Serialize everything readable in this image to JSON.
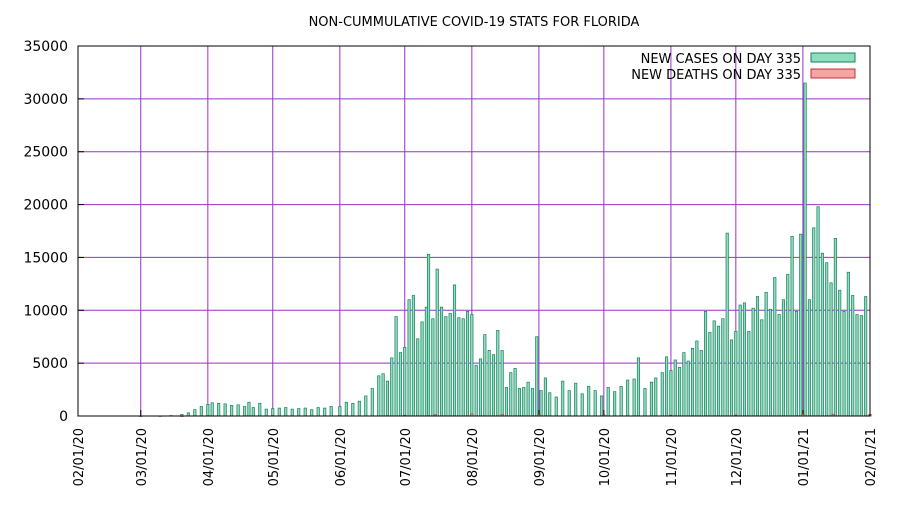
{
  "chart_data": {
    "type": "bar",
    "title": "NON-CUMMULATIVE COVID-19 STATS FOR FLORIDA",
    "xlabel": "",
    "ylabel": "",
    "ylim": [
      0,
      35000
    ],
    "yticks": [
      0,
      5000,
      10000,
      15000,
      20000,
      25000,
      30000,
      35000
    ],
    "xticks": [
      "02/01/20",
      "03/01/20",
      "04/01/20",
      "05/01/20",
      "06/01/20",
      "07/01/20",
      "08/01/20",
      "09/01/20",
      "10/01/20",
      "11/01/20",
      "12/01/20",
      "01/01/21",
      "02/01/21"
    ],
    "x_start": "02/01/20",
    "x_end": "02/01/21",
    "grid": true,
    "legend_position": "top-right",
    "series": [
      {
        "name": "NEW CASES ON DAY 335",
        "color": "#8fdcbf",
        "edge": "#14805a",
        "points": [
          [
            "03/01/20",
            2
          ],
          [
            "03/10/20",
            10
          ],
          [
            "03/15/20",
            40
          ],
          [
            "03/20/20",
            150
          ],
          [
            "03/23/20",
            300
          ],
          [
            "03/26/20",
            600
          ],
          [
            "03/29/20",
            900
          ],
          [
            "04/01/20",
            1100
          ],
          [
            "04/03/20",
            1250
          ],
          [
            "04/06/20",
            1200
          ],
          [
            "04/09/20",
            1150
          ],
          [
            "04/12/20",
            1000
          ],
          [
            "04/15/20",
            1050
          ],
          [
            "04/18/20",
            900
          ],
          [
            "04/20/20",
            1300
          ],
          [
            "04/22/20",
            800
          ],
          [
            "04/25/20",
            1200
          ],
          [
            "04/28/20",
            650
          ],
          [
            "05/01/20",
            700
          ],
          [
            "05/04/20",
            750
          ],
          [
            "05/07/20",
            800
          ],
          [
            "05/10/20",
            650
          ],
          [
            "05/13/20",
            700
          ],
          [
            "05/16/20",
            750
          ],
          [
            "05/19/20",
            600
          ],
          [
            "05/22/20",
            800
          ],
          [
            "05/25/20",
            750
          ],
          [
            "05/28/20",
            900
          ],
          [
            "06/01/20",
            900
          ],
          [
            "06/04/20",
            1300
          ],
          [
            "06/07/20",
            1200
          ],
          [
            "06/10/20",
            1400
          ],
          [
            "06/13/20",
            1900
          ],
          [
            "06/16/20",
            2600
          ],
          [
            "06/19/20",
            3800
          ],
          [
            "06/21/20",
            4000
          ],
          [
            "06/23/20",
            3300
          ],
          [
            "06/25/20",
            5500
          ],
          [
            "06/27/20",
            9400
          ],
          [
            "06/29/20",
            6000
          ],
          [
            "07/01/20",
            6500
          ],
          [
            "07/03/20",
            11000
          ],
          [
            "07/05/20",
            11400
          ],
          [
            "07/07/20",
            7300
          ],
          [
            "07/09/20",
            8900
          ],
          [
            "07/11/20",
            10300
          ],
          [
            "07/12/20",
            15300
          ],
          [
            "07/14/20",
            9200
          ],
          [
            "07/16/20",
            13900
          ],
          [
            "07/18/20",
            10300
          ],
          [
            "07/20/20",
            9400
          ],
          [
            "07/22/20",
            9700
          ],
          [
            "07/24/20",
            12400
          ],
          [
            "07/26/20",
            9300
          ],
          [
            "07/28/20",
            9200
          ],
          [
            "07/30/20",
            9900
          ],
          [
            "08/01/20",
            9600
          ],
          [
            "08/03/20",
            4800
          ],
          [
            "08/05/20",
            5400
          ],
          [
            "08/07/20",
            7700
          ],
          [
            "08/09/20",
            6200
          ],
          [
            "08/11/20",
            5800
          ],
          [
            "08/13/20",
            8100
          ],
          [
            "08/15/20",
            6200
          ],
          [
            "08/17/20",
            2700
          ],
          [
            "08/19/20",
            4100
          ],
          [
            "08/21/20",
            4500
          ],
          [
            "08/23/20",
            2600
          ],
          [
            "08/25/20",
            2700
          ],
          [
            "08/27/20",
            3200
          ],
          [
            "08/29/20",
            2600
          ],
          [
            "08/31/20",
            7500
          ],
          [
            "09/02/20",
            2400
          ],
          [
            "09/04/20",
            3600
          ],
          [
            "09/06/20",
            2200
          ],
          [
            "09/09/20",
            1800
          ],
          [
            "09/12/20",
            3300
          ],
          [
            "09/15/20",
            2400
          ],
          [
            "09/18/20",
            3100
          ],
          [
            "09/21/20",
            2100
          ],
          [
            "09/24/20",
            2800
          ],
          [
            "09/27/20",
            2400
          ],
          [
            "09/30/20",
            1900
          ],
          [
            "10/03/20",
            2700
          ],
          [
            "10/06/20",
            2300
          ],
          [
            "10/09/20",
            2800
          ],
          [
            "10/12/20",
            3400
          ],
          [
            "10/15/20",
            3500
          ],
          [
            "10/17/20",
            5500
          ],
          [
            "10/20/20",
            2600
          ],
          [
            "10/23/20",
            3200
          ],
          [
            "10/25/20",
            3600
          ],
          [
            "10/28/20",
            4100
          ],
          [
            "10/30/20",
            5600
          ],
          [
            "11/01/20",
            4300
          ],
          [
            "11/03/20",
            5300
          ],
          [
            "11/05/20",
            4600
          ],
          [
            "11/07/20",
            6000
          ],
          [
            "11/09/20",
            5200
          ],
          [
            "11/11/20",
            6400
          ],
          [
            "11/13/20",
            7100
          ],
          [
            "11/15/20",
            6200
          ],
          [
            "11/17/20",
            9900
          ],
          [
            "11/19/20",
            7900
          ],
          [
            "11/21/20",
            9000
          ],
          [
            "11/23/20",
            8500
          ],
          [
            "11/25/20",
            9200
          ],
          [
            "11/27/20",
            17300
          ],
          [
            "11/29/20",
            7200
          ],
          [
            "12/01/20",
            8000
          ],
          [
            "12/03/20",
            10500
          ],
          [
            "12/05/20",
            10700
          ],
          [
            "12/07/20",
            8000
          ],
          [
            "12/09/20",
            10200
          ],
          [
            "12/11/20",
            11300
          ],
          [
            "12/13/20",
            9100
          ],
          [
            "12/15/20",
            11700
          ],
          [
            "12/17/20",
            10100
          ],
          [
            "12/19/20",
            13100
          ],
          [
            "12/21/20",
            9600
          ],
          [
            "12/23/20",
            11000
          ],
          [
            "12/25/20",
            13400
          ],
          [
            "12/27/20",
            17000
          ],
          [
            "12/29/20",
            9900
          ],
          [
            "12/31/20",
            17200
          ],
          [
            "01/02/21",
            31500
          ],
          [
            "01/04/21",
            11000
          ],
          [
            "01/06/21",
            17800
          ],
          [
            "01/08/21",
            19800
          ],
          [
            "01/10/21",
            15400
          ],
          [
            "01/12/21",
            14500
          ],
          [
            "01/14/21",
            12600
          ],
          [
            "01/16/21",
            16800
          ],
          [
            "01/18/21",
            11900
          ],
          [
            "01/20/21",
            9900
          ],
          [
            "01/22/21",
            13600
          ],
          [
            "01/24/21",
            11400
          ],
          [
            "01/26/21",
            9600
          ],
          [
            "01/28/21",
            9500
          ],
          [
            "01/30/21",
            11300
          ]
        ]
      },
      {
        "name": "NEW DEATHS ON DAY 335",
        "color": "#f4a6a6",
        "edge": "#c03030",
        "points": [
          [
            "03/20/20",
            5
          ],
          [
            "04/01/20",
            30
          ],
          [
            "05/01/20",
            40
          ],
          [
            "06/01/20",
            40
          ],
          [
            "07/01/20",
            60
          ],
          [
            "07/15/20",
            120
          ],
          [
            "08/01/20",
            180
          ],
          [
            "08/15/20",
            160
          ],
          [
            "09/01/20",
            120
          ],
          [
            "10/01/20",
            100
          ],
          [
            "11/01/20",
            70
          ],
          [
            "12/01/20",
            100
          ],
          [
            "01/01/21",
            150
          ],
          [
            "01/15/21",
            170
          ],
          [
            "02/01/21",
            150
          ]
        ]
      }
    ]
  }
}
